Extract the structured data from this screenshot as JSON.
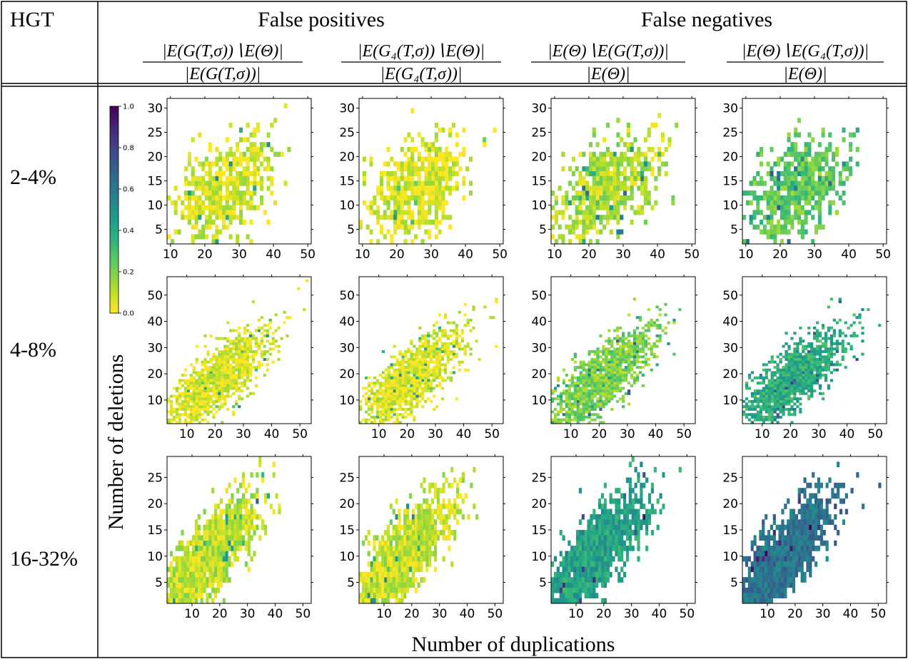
{
  "table": {
    "hgt_header": "HGT",
    "group_headers": [
      "False positives",
      "False negatives"
    ],
    "column_formulas": [
      {
        "num": "|E(G(T,σ))∖E(Θ)|",
        "den": "|E(G(T,σ))|"
      },
      {
        "num": "|E(G₄(T,σ))∖E(Θ)|",
        "den": "|E(G₄(T,σ))|"
      },
      {
        "num": "|E(Θ)∖E(G(T,σ))|",
        "den": "|E(Θ)|"
      },
      {
        "num": "|E(Θ)∖E(G₄(T,σ))|",
        "den": "|E(Θ)|"
      }
    ],
    "row_labels": [
      "2-4%",
      "4-8%",
      "16-32%"
    ]
  },
  "axes": {
    "xlabel": "Number of duplications",
    "ylabel": "Number of deletions"
  },
  "colorbar": {
    "ticks": [
      "1.0",
      "0.8",
      "0.6",
      "0.4",
      "0.2",
      "0.0"
    ],
    "range": [
      0,
      1
    ],
    "colormap": "viridis_r",
    "stops": [
      "#fde725",
      "#b5de2b",
      "#6ece58",
      "#35b779",
      "#1f9e89",
      "#26828e",
      "#31688e",
      "#3e4989",
      "#482878",
      "#440154"
    ]
  },
  "chart_data": [
    {
      "type": "heatmap",
      "row": "2-4%",
      "col": 0,
      "xlim": [
        9,
        51
      ],
      "ylim": [
        2,
        32
      ],
      "xticks": [
        10,
        20,
        30,
        40,
        50
      ],
      "yticks": [
        5,
        10,
        15,
        20,
        25,
        30
      ],
      "level": 0.06
    },
    {
      "type": "heatmap",
      "row": "2-4%",
      "col": 1,
      "xlim": [
        9,
        51
      ],
      "ylim": [
        2,
        32
      ],
      "xticks": [
        10,
        20,
        30,
        40,
        50
      ],
      "yticks": [
        5,
        10,
        15,
        20,
        25,
        30
      ],
      "level": 0.05
    },
    {
      "type": "heatmap",
      "row": "2-4%",
      "col": 2,
      "xlim": [
        9,
        51
      ],
      "ylim": [
        2,
        32
      ],
      "xticks": [
        10,
        20,
        30,
        40,
        50
      ],
      "yticks": [
        5,
        10,
        15,
        20,
        25,
        30
      ],
      "level": 0.12
    },
    {
      "type": "heatmap",
      "row": "2-4%",
      "col": 3,
      "xlim": [
        9,
        51
      ],
      "ylim": [
        2,
        32
      ],
      "xticks": [
        10,
        20,
        30,
        40,
        50
      ],
      "yticks": [
        5,
        10,
        15,
        20,
        25,
        30
      ],
      "level": 0.25
    },
    {
      "type": "heatmap",
      "row": "4-8%",
      "col": 0,
      "xlim": [
        3,
        54
      ],
      "ylim": [
        1,
        57
      ],
      "xticks": [
        10,
        20,
        30,
        40,
        50
      ],
      "yticks": [
        10,
        20,
        30,
        40,
        50
      ],
      "level": 0.05
    },
    {
      "type": "heatmap",
      "row": "4-8%",
      "col": 1,
      "xlim": [
        3,
        54
      ],
      "ylim": [
        1,
        57
      ],
      "xticks": [
        10,
        20,
        30,
        40,
        50
      ],
      "yticks": [
        10,
        20,
        30,
        40,
        50
      ],
      "level": 0.05
    },
    {
      "type": "heatmap",
      "row": "4-8%",
      "col": 2,
      "xlim": [
        3,
        54
      ],
      "ylim": [
        1,
        57
      ],
      "xticks": [
        10,
        20,
        30,
        40,
        50
      ],
      "yticks": [
        10,
        20,
        30,
        40,
        50
      ],
      "level": 0.2
    },
    {
      "type": "heatmap",
      "row": "4-8%",
      "col": 3,
      "xlim": [
        3,
        54
      ],
      "ylim": [
        1,
        57
      ],
      "xticks": [
        10,
        20,
        30,
        40,
        50
      ],
      "yticks": [
        10,
        20,
        30,
        40,
        50
      ],
      "level": 0.38
    },
    {
      "type": "heatmap",
      "row": "16-32%",
      "col": 0,
      "xlim": [
        1,
        53
      ],
      "ylim": [
        1,
        29
      ],
      "xticks": [
        10,
        20,
        30,
        40,
        50
      ],
      "yticks": [
        5,
        10,
        15,
        20,
        25
      ],
      "level": 0.1
    },
    {
      "type": "heatmap",
      "row": "16-32%",
      "col": 1,
      "xlim": [
        1,
        53
      ],
      "ylim": [
        1,
        29
      ],
      "xticks": [
        10,
        20,
        30,
        40,
        50
      ],
      "yticks": [
        5,
        10,
        15,
        20,
        25
      ],
      "level": 0.08
    },
    {
      "type": "heatmap",
      "row": "16-32%",
      "col": 2,
      "xlim": [
        1,
        53
      ],
      "ylim": [
        1,
        29
      ],
      "xticks": [
        10,
        20,
        30,
        40,
        50
      ],
      "yticks": [
        5,
        10,
        15,
        20,
        25
      ],
      "level": 0.42
    },
    {
      "type": "heatmap",
      "row": "16-32%",
      "col": 3,
      "xlim": [
        1,
        53
      ],
      "ylim": [
        1,
        29
      ],
      "xticks": [
        10,
        20,
        30,
        40,
        50
      ],
      "yticks": [
        5,
        10,
        15,
        20,
        25
      ],
      "level": 0.62
    }
  ]
}
